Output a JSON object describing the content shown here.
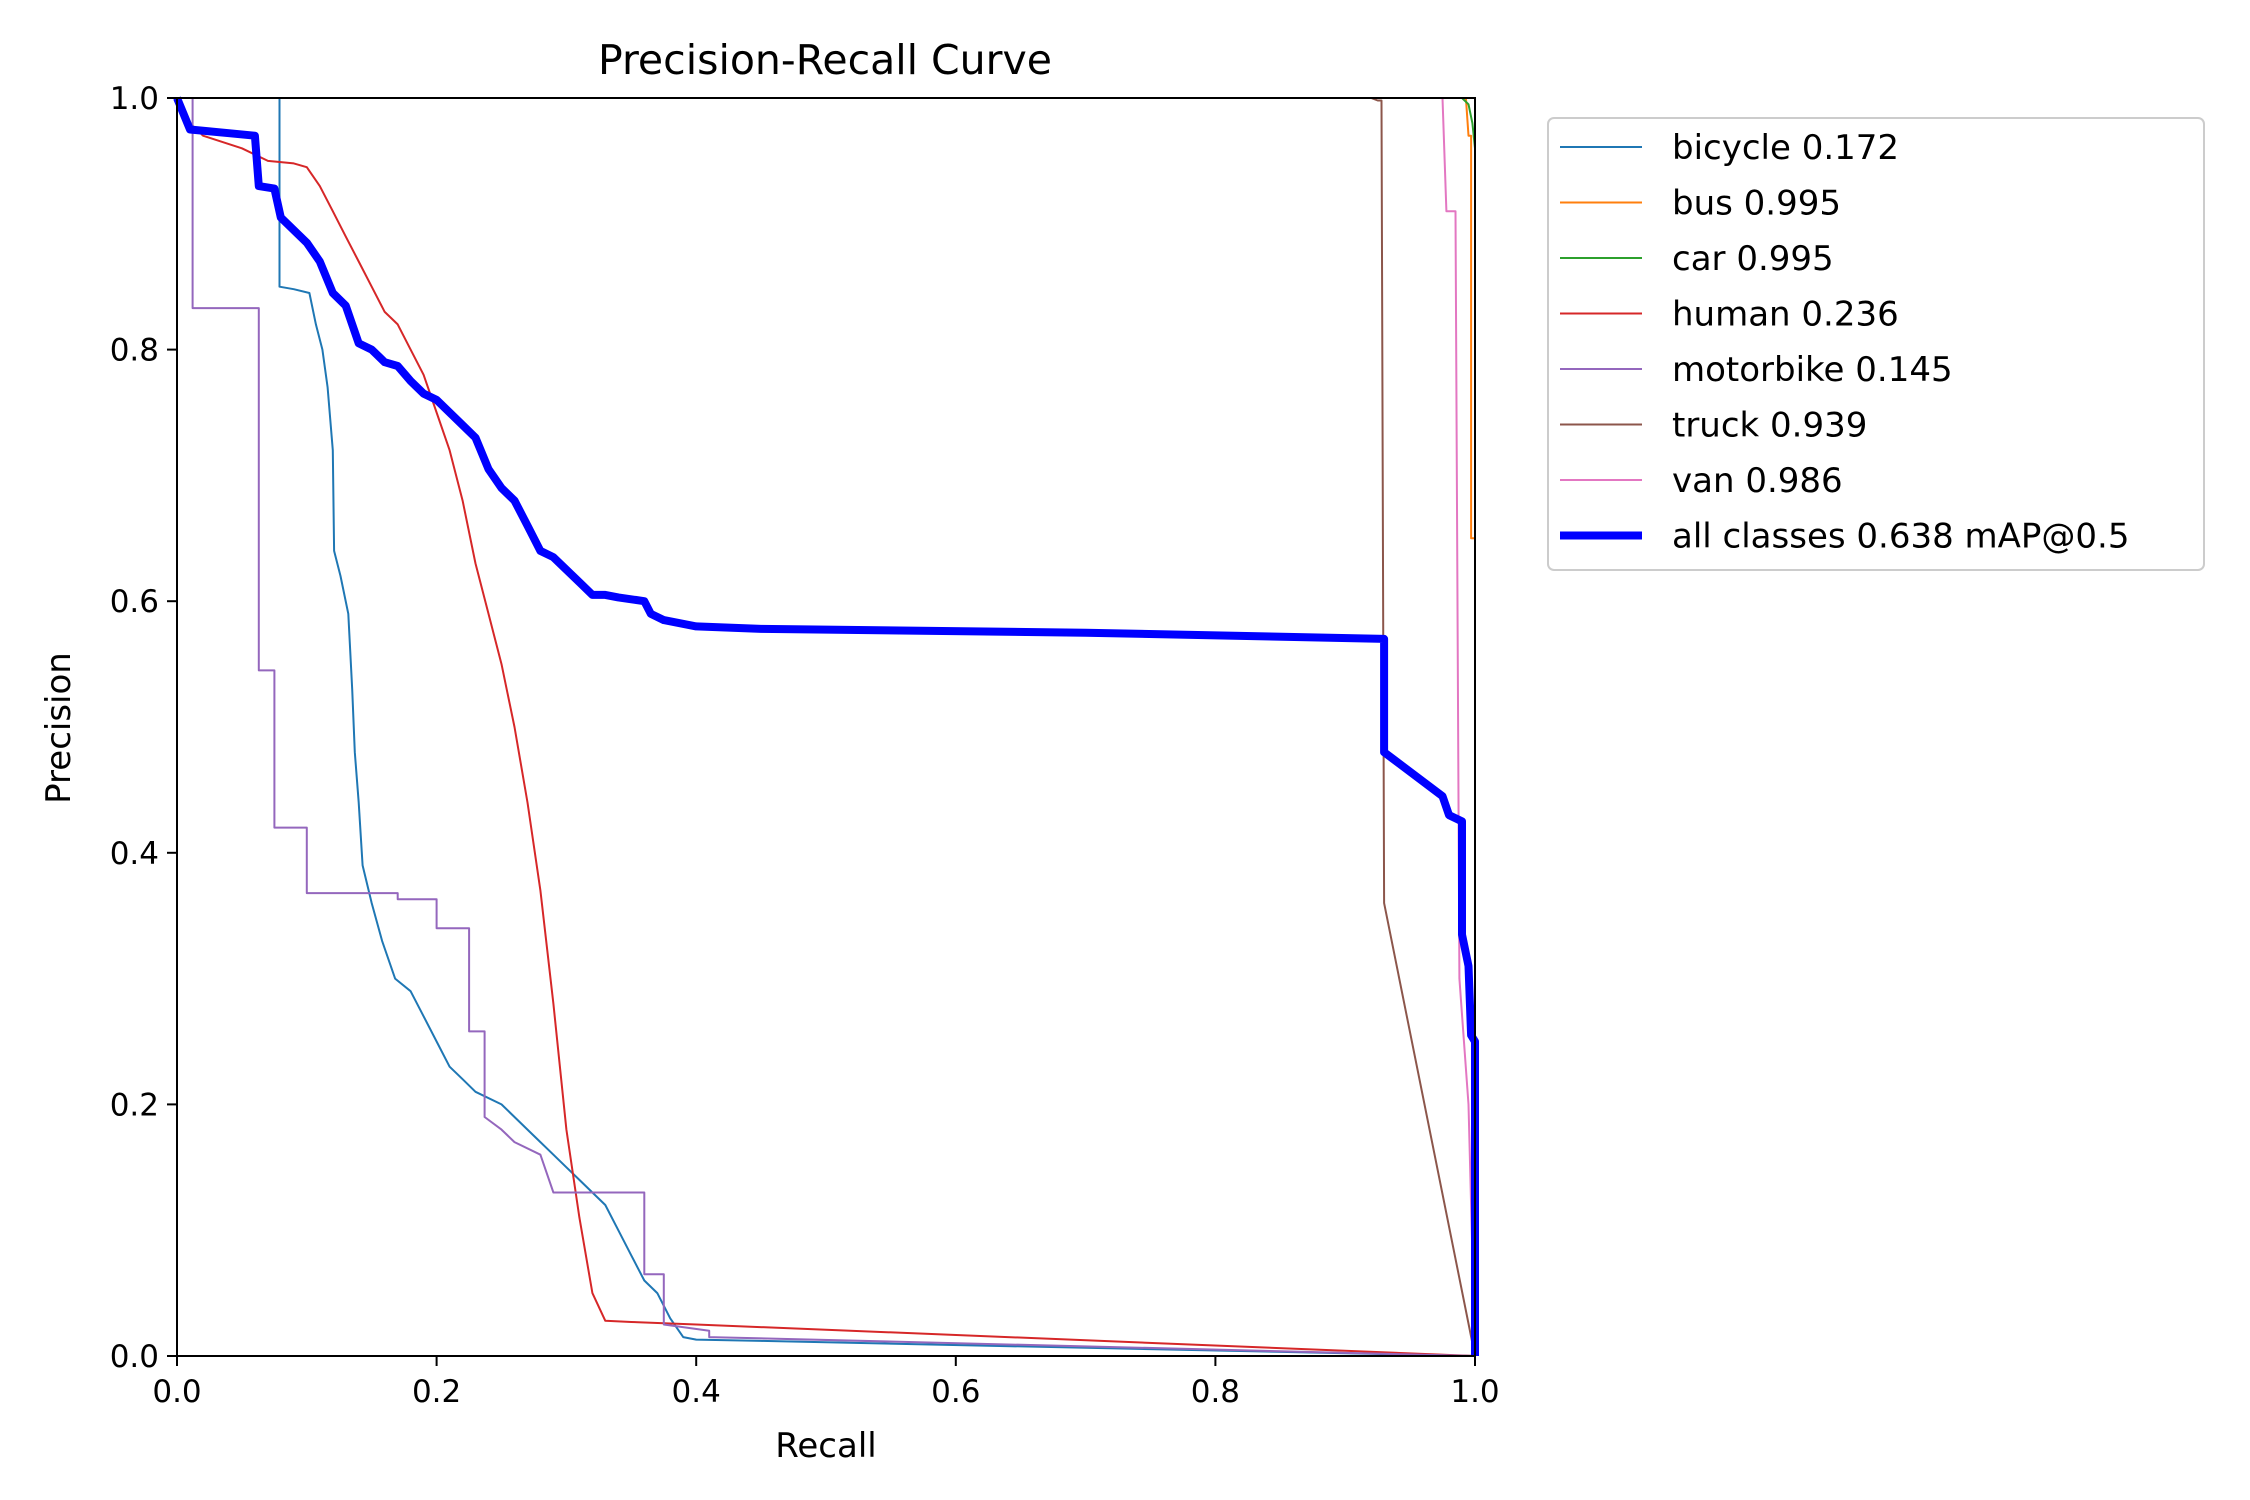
{
  "chart_data": {
    "type": "line",
    "title": "Precision-Recall Curve",
    "xlabel": "Recall",
    "ylabel": "Precision",
    "xlim": [
      0,
      1
    ],
    "ylim": [
      0,
      1
    ],
    "xticks": [
      "0.0",
      "0.2",
      "0.4",
      "0.6",
      "0.8",
      "1.0"
    ],
    "yticks": [
      "0.0",
      "0.2",
      "0.4",
      "0.6",
      "0.8",
      "1.0"
    ],
    "grid": false,
    "legend_position": "outside-top-right",
    "series": [
      {
        "name": "bicycle 0.172",
        "color": "#1f77b4",
        "width": "thin",
        "points": [
          [
            0.0,
            1.0
          ],
          [
            0.079,
            1.0
          ],
          [
            0.079,
            0.85
          ],
          [
            0.09,
            0.848
          ],
          [
            0.102,
            0.845
          ],
          [
            0.107,
            0.82
          ],
          [
            0.112,
            0.8
          ],
          [
            0.116,
            0.77
          ],
          [
            0.12,
            0.72
          ],
          [
            0.121,
            0.64
          ],
          [
            0.126,
            0.62
          ],
          [
            0.132,
            0.59
          ],
          [
            0.135,
            0.53
          ],
          [
            0.137,
            0.48
          ],
          [
            0.14,
            0.44
          ],
          [
            0.143,
            0.39
          ],
          [
            0.15,
            0.36
          ],
          [
            0.158,
            0.33
          ],
          [
            0.168,
            0.3
          ],
          [
            0.18,
            0.29
          ],
          [
            0.19,
            0.27
          ],
          [
            0.2,
            0.25
          ],
          [
            0.21,
            0.23
          ],
          [
            0.22,
            0.22
          ],
          [
            0.23,
            0.21
          ],
          [
            0.25,
            0.2
          ],
          [
            0.26,
            0.19
          ],
          [
            0.27,
            0.18
          ],
          [
            0.28,
            0.17
          ],
          [
            0.29,
            0.16
          ],
          [
            0.3,
            0.15
          ],
          [
            0.31,
            0.14
          ],
          [
            0.32,
            0.13
          ],
          [
            0.33,
            0.12
          ],
          [
            0.34,
            0.1
          ],
          [
            0.35,
            0.08
          ],
          [
            0.36,
            0.06
          ],
          [
            0.37,
            0.05
          ],
          [
            0.38,
            0.03
          ],
          [
            0.39,
            0.015
          ],
          [
            0.4,
            0.013
          ],
          [
            0.45,
            0.012
          ],
          [
            1.0,
            0.0
          ]
        ]
      },
      {
        "name": "bus 0.995",
        "color": "#ff7f0e",
        "width": "thin",
        "points": [
          [
            0.0,
            1.0
          ],
          [
            0.993,
            1.0
          ],
          [
            0.995,
            0.97
          ],
          [
            0.997,
            0.97
          ],
          [
            0.997,
            0.65
          ],
          [
            1.0,
            0.65
          ],
          [
            1.0,
            0.0
          ]
        ]
      },
      {
        "name": "car 0.995",
        "color": "#2ca02c",
        "width": "thin",
        "points": [
          [
            0.0,
            1.0
          ],
          [
            0.99,
            1.0
          ],
          [
            0.995,
            0.995
          ],
          [
            0.998,
            0.98
          ],
          [
            1.0,
            0.96
          ],
          [
            1.0,
            0.0
          ]
        ]
      },
      {
        "name": "human 0.236",
        "color": "#d62728",
        "width": "thin",
        "points": [
          [
            0.0,
            1.0
          ],
          [
            0.01,
            0.98
          ],
          [
            0.02,
            0.97
          ],
          [
            0.05,
            0.96
          ],
          [
            0.07,
            0.95
          ],
          [
            0.09,
            0.948
          ],
          [
            0.1,
            0.945
          ],
          [
            0.11,
            0.93
          ],
          [
            0.12,
            0.91
          ],
          [
            0.13,
            0.89
          ],
          [
            0.14,
            0.87
          ],
          [
            0.15,
            0.85
          ],
          [
            0.16,
            0.83
          ],
          [
            0.17,
            0.82
          ],
          [
            0.18,
            0.8
          ],
          [
            0.19,
            0.78
          ],
          [
            0.2,
            0.75
          ],
          [
            0.21,
            0.72
          ],
          [
            0.22,
            0.68
          ],
          [
            0.23,
            0.63
          ],
          [
            0.24,
            0.59
          ],
          [
            0.25,
            0.55
          ],
          [
            0.26,
            0.5
          ],
          [
            0.27,
            0.44
          ],
          [
            0.28,
            0.37
          ],
          [
            0.29,
            0.28
          ],
          [
            0.3,
            0.18
          ],
          [
            0.31,
            0.11
          ],
          [
            0.32,
            0.05
          ],
          [
            0.33,
            0.028
          ],
          [
            0.35,
            0.027
          ],
          [
            0.4,
            0.025
          ],
          [
            1.0,
            0.0
          ]
        ]
      },
      {
        "name": "motorbike 0.145",
        "color": "#9467bd",
        "width": "thin",
        "points": [
          [
            0.0,
            1.0
          ],
          [
            0.012,
            1.0
          ],
          [
            0.012,
            0.833
          ],
          [
            0.063,
            0.833
          ],
          [
            0.063,
            0.545
          ],
          [
            0.075,
            0.545
          ],
          [
            0.075,
            0.42
          ],
          [
            0.1,
            0.42
          ],
          [
            0.1,
            0.368
          ],
          [
            0.17,
            0.368
          ],
          [
            0.17,
            0.363
          ],
          [
            0.2,
            0.363
          ],
          [
            0.2,
            0.34
          ],
          [
            0.225,
            0.34
          ],
          [
            0.225,
            0.258
          ],
          [
            0.237,
            0.258
          ],
          [
            0.237,
            0.19
          ],
          [
            0.25,
            0.18
          ],
          [
            0.26,
            0.17
          ],
          [
            0.28,
            0.16
          ],
          [
            0.29,
            0.13
          ],
          [
            0.36,
            0.13
          ],
          [
            0.36,
            0.065
          ],
          [
            0.375,
            0.065
          ],
          [
            0.375,
            0.025
          ],
          [
            0.41,
            0.02
          ],
          [
            0.41,
            0.015
          ],
          [
            1.0,
            0.0
          ]
        ]
      },
      {
        "name": "truck 0.939",
        "color": "#8c564b",
        "width": "thin",
        "points": [
          [
            0.0,
            1.0
          ],
          [
            0.92,
            1.0
          ],
          [
            0.925,
            0.998
          ],
          [
            0.928,
            0.998
          ],
          [
            0.93,
            0.36
          ],
          [
            1.0,
            0.0
          ]
        ]
      },
      {
        "name": "van 0.986",
        "color": "#e377c2",
        "width": "thin",
        "points": [
          [
            0.0,
            1.0
          ],
          [
            0.975,
            1.0
          ],
          [
            0.978,
            0.91
          ],
          [
            0.985,
            0.91
          ],
          [
            0.988,
            0.3
          ],
          [
            0.995,
            0.2
          ],
          [
            1.0,
            0.0
          ]
        ]
      },
      {
        "name": "all classes 0.638 mAP@0.5",
        "color": "#0000ff",
        "width": "thick",
        "points": [
          [
            0.0,
            1.0
          ],
          [
            0.01,
            0.975
          ],
          [
            0.04,
            0.972
          ],
          [
            0.06,
            0.97
          ],
          [
            0.063,
            0.93
          ],
          [
            0.075,
            0.928
          ],
          [
            0.08,
            0.905
          ],
          [
            0.09,
            0.895
          ],
          [
            0.1,
            0.885
          ],
          [
            0.11,
            0.87
          ],
          [
            0.12,
            0.845
          ],
          [
            0.13,
            0.835
          ],
          [
            0.14,
            0.805
          ],
          [
            0.15,
            0.8
          ],
          [
            0.16,
            0.79
          ],
          [
            0.17,
            0.787
          ],
          [
            0.18,
            0.775
          ],
          [
            0.19,
            0.765
          ],
          [
            0.2,
            0.76
          ],
          [
            0.21,
            0.75
          ],
          [
            0.22,
            0.74
          ],
          [
            0.23,
            0.73
          ],
          [
            0.24,
            0.705
          ],
          [
            0.25,
            0.69
          ],
          [
            0.26,
            0.68
          ],
          [
            0.27,
            0.66
          ],
          [
            0.28,
            0.64
          ],
          [
            0.29,
            0.635
          ],
          [
            0.3,
            0.625
          ],
          [
            0.31,
            0.615
          ],
          [
            0.32,
            0.605
          ],
          [
            0.33,
            0.605
          ],
          [
            0.34,
            0.603
          ],
          [
            0.36,
            0.6
          ],
          [
            0.365,
            0.59
          ],
          [
            0.375,
            0.585
          ],
          [
            0.4,
            0.58
          ],
          [
            0.45,
            0.578
          ],
          [
            0.7,
            0.575
          ],
          [
            0.93,
            0.57
          ],
          [
            0.93,
            0.48
          ],
          [
            0.975,
            0.445
          ],
          [
            0.98,
            0.43
          ],
          [
            0.99,
            0.425
          ],
          [
            0.99,
            0.335
          ],
          [
            0.995,
            0.31
          ],
          [
            0.997,
            0.255
          ],
          [
            1.0,
            0.25
          ],
          [
            1.0,
            0.0
          ]
        ]
      }
    ]
  }
}
